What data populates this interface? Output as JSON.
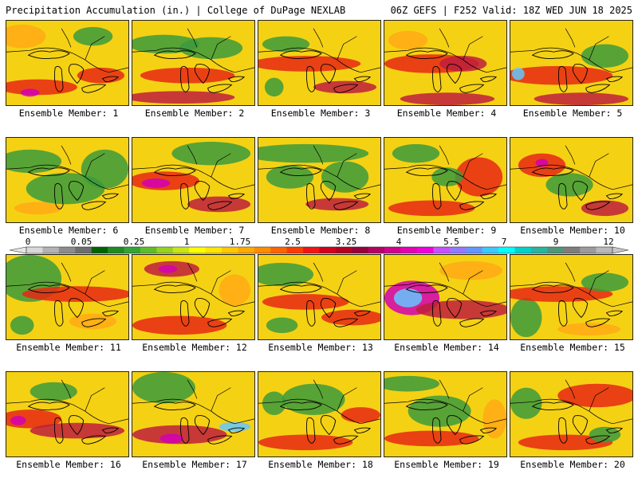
{
  "header": {
    "left_title": "Precipitation Accumulation (in.) | College of DuPage NEXLAB",
    "right_title": "06Z GEFS | F252 Valid: 18Z WED JUN 18 2025"
  },
  "panels": [
    {
      "label": "Ensemble Member: 1"
    },
    {
      "label": "Ensemble Member: 2"
    },
    {
      "label": "Ensemble Member: 3"
    },
    {
      "label": "Ensemble Member: 4"
    },
    {
      "label": "Ensemble Member: 5"
    },
    {
      "label": "Ensemble Member: 6"
    },
    {
      "label": "Ensemble Member: 7"
    },
    {
      "label": "Ensemble Member: 8"
    },
    {
      "label": "Ensemble Member: 9"
    },
    {
      "label": "Ensemble Member: 10"
    },
    {
      "label": "Ensemble Member: 11"
    },
    {
      "label": "Ensemble Member: 12"
    },
    {
      "label": "Ensemble Member: 13"
    },
    {
      "label": "Ensemble Member: 14"
    },
    {
      "label": "Ensemble Member: 15"
    },
    {
      "label": "Ensemble Member: 16"
    },
    {
      "label": "Ensemble Member: 17"
    },
    {
      "label": "Ensemble Member: 18"
    },
    {
      "label": "Ensemble Member: 19"
    },
    {
      "label": "Ensemble Member: 20"
    }
  ],
  "colorbar": {
    "labels": [
      "0",
      "0.05",
      "0.25",
      "1",
      "1.75",
      "2.5",
      "3.25",
      "4",
      "5.5",
      "7",
      "9",
      "12"
    ],
    "colors": [
      "#d9d9d9",
      "#b3b3b3",
      "#8c8c8c",
      "#6e6e6e",
      "#006400",
      "#1e8c1e",
      "#32a532",
      "#5fbe28",
      "#96d21e",
      "#c8e614",
      "#ffff00",
      "#ffe600",
      "#ffc800",
      "#ffaa00",
      "#ff8c00",
      "#ff6400",
      "#ff3c00",
      "#f01414",
      "#d2001e",
      "#b4001e",
      "#96003c",
      "#b40064",
      "#d2008c",
      "#e600b4",
      "#f000dc",
      "#c850ff",
      "#9678ff",
      "#6496ff",
      "#3cc8ff",
      "#00ffff",
      "#00d2c8",
      "#28b4a0",
      "#509678",
      "#7d7d7d",
      "#9b9b9b",
      "#b9b9b9"
    ]
  },
  "map_palette": {
    "base": "#f0e614",
    "dry": "#3c9b3c",
    "moist": "#ffaa14",
    "wet": "#e62814",
    "heavy": "#be1e3c",
    "extreme": "#d200b4",
    "peak": "#64c8ff"
  }
}
